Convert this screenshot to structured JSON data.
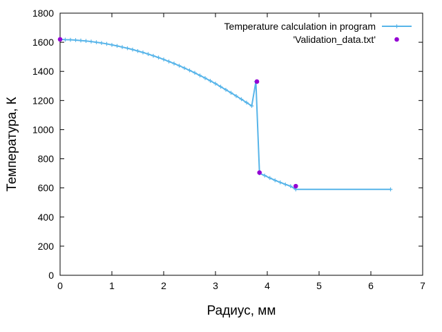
{
  "chart_data": {
    "type": "line",
    "xlabel": "Радиус,  мм",
    "ylabel": "Температура,  К",
    "xlim": [
      0,
      7
    ],
    "ylim": [
      0,
      1800
    ],
    "xticks": [
      0,
      1,
      2,
      3,
      4,
      5,
      6,
      7
    ],
    "yticks": [
      0,
      200,
      400,
      600,
      800,
      1000,
      1200,
      1400,
      1600,
      1800
    ],
    "grid": false,
    "legend_position": "top-right",
    "series": [
      {
        "name": "Temperature calculation in program",
        "style": "linespoints",
        "color": "#56b4e9",
        "x": [
          0,
          0.1,
          0.2,
          0.3,
          0.4,
          0.5,
          0.6,
          0.7,
          0.8,
          0.9,
          1.0,
          1.1,
          1.2,
          1.3,
          1.4,
          1.5,
          1.6,
          1.7,
          1.8,
          1.9,
          2.0,
          2.1,
          2.2,
          2.3,
          2.4,
          2.5,
          2.6,
          2.7,
          2.8,
          2.9,
          3.0,
          3.1,
          3.2,
          3.3,
          3.4,
          3.5,
          3.6,
          3.7,
          3.78,
          3.85,
          3.95,
          4.05,
          4.15,
          4.25,
          4.35,
          4.45,
          4.55,
          6.38
        ],
        "y": [
          1620,
          1618,
          1617,
          1615,
          1612,
          1609,
          1605,
          1600,
          1595,
          1589,
          1582,
          1575,
          1567,
          1559,
          1550,
          1540,
          1530,
          1519,
          1507,
          1495,
          1482,
          1468,
          1454,
          1439,
          1423,
          1407,
          1390,
          1372,
          1354,
          1335,
          1316,
          1295,
          1274,
          1253,
          1231,
          1209,
          1186,
          1163,
          1330,
          700,
          685,
          668,
          652,
          638,
          624,
          612,
          590,
          590
        ]
      },
      {
        "name": "'Validation_data.txt'",
        "style": "points",
        "color": "#9400d3",
        "x": [
          0,
          3.8,
          3.85,
          4.55
        ],
        "y": [
          1620,
          1330,
          705,
          612
        ]
      }
    ]
  }
}
